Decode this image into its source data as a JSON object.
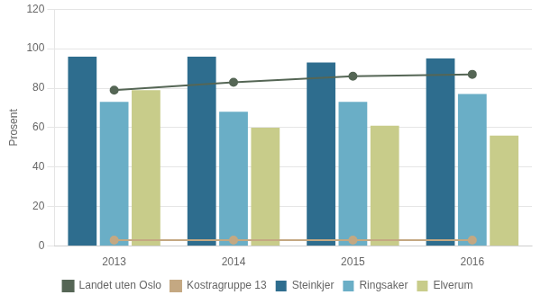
{
  "chart_data": {
    "type": "bar",
    "categories": [
      "2013",
      "2014",
      "2015",
      "2016"
    ],
    "series": [
      {
        "name": "Steinkjer",
        "color": "#2e6d8e",
        "values": [
          96,
          96,
          93,
          95
        ]
      },
      {
        "name": "Ringsaker",
        "color": "#6aaec6",
        "values": [
          73,
          68,
          73,
          77
        ]
      },
      {
        "name": "Elverum",
        "color": "#c8cc8a",
        "values": [
          79,
          60,
          61,
          56
        ]
      },
      {
        "name": "Landet uten Oslo",
        "type": "line",
        "marker": "circle",
        "color": "#556655",
        "values": [
          79,
          83,
          86,
          87
        ]
      },
      {
        "name": "Kostragruppe 13",
        "type": "line",
        "marker": "circle",
        "color": "#c4a882",
        "values": [
          3,
          3,
          3,
          3
        ]
      }
    ],
    "ylabel": "Prosent",
    "ylim": [
      0,
      120
    ],
    "yticks": [
      0,
      20,
      40,
      60,
      80,
      100,
      120
    ],
    "grid": true,
    "legend": "bottom"
  }
}
